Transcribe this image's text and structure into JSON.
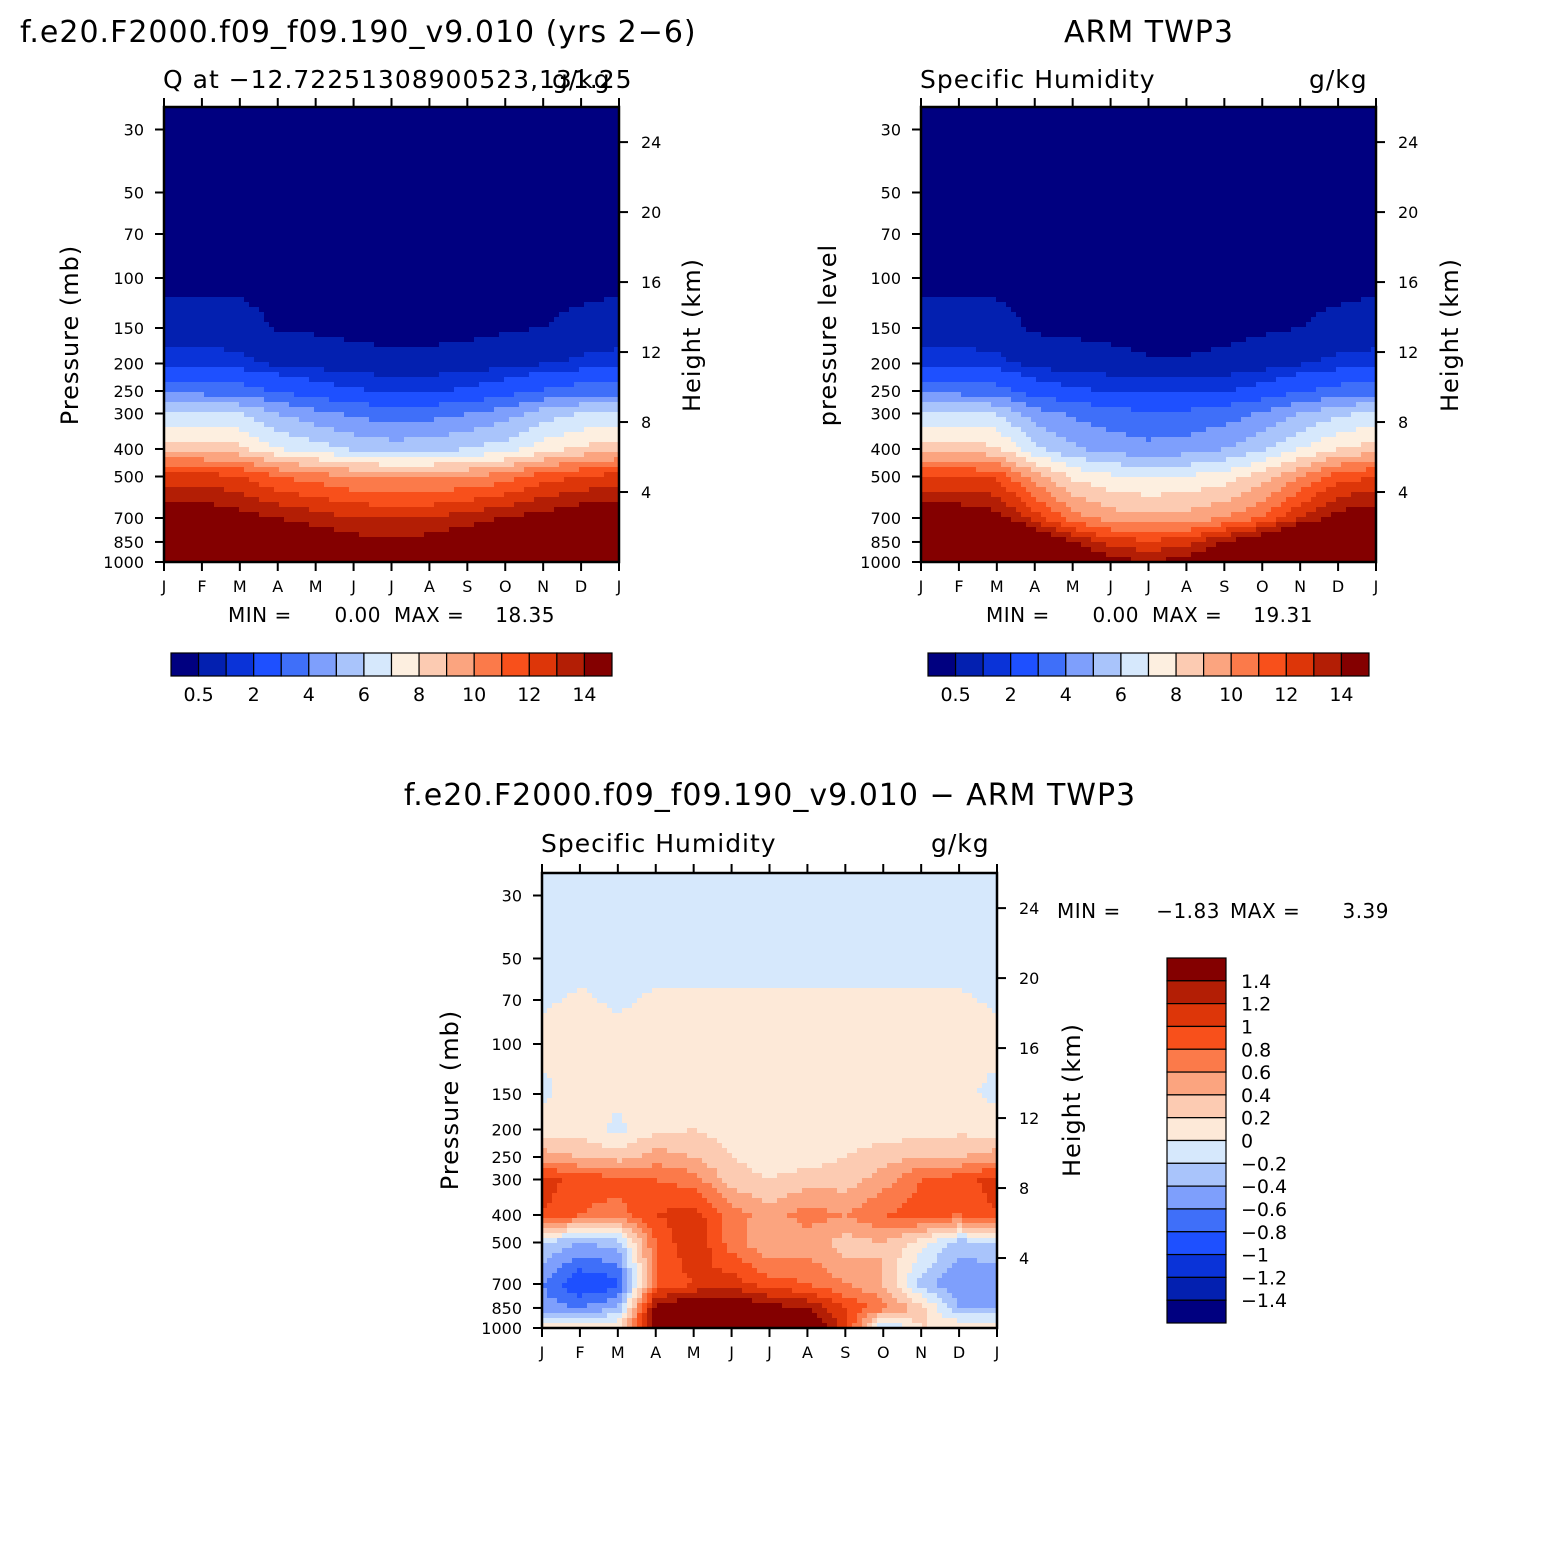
{
  "colors": {
    "abs_scale": [
      "#000080",
      "#0320b0",
      "#0a33d8",
      "#1e50ff",
      "#3f6ff9",
      "#7e9ffc",
      "#a9c4fb",
      "#d6e8fc",
      "#fdefe0",
      "#fccbb2",
      "#fba47f",
      "#fb7a4a",
      "#f8501b",
      "#dd3609",
      "#b31e05",
      "#840000"
    ],
    "diff_scale": [
      "#000080",
      "#0320b0",
      "#0a33d8",
      "#1e50ff",
      "#3f6ff9",
      "#7e9ffc",
      "#a9c4fb",
      "#d6e8fc",
      "#fde9d8",
      "#fccbb2",
      "#fba47f",
      "#fb7a4a",
      "#f8501b",
      "#dd3609",
      "#b31e05",
      "#840000"
    ]
  },
  "chart_data": [
    {
      "type": "heatmap",
      "title": "f.e20.F2000.f09_f09.190_v9.010 (yrs 2−6)",
      "subtitle_left": "Q at −12.72251308900523,131.25",
      "subtitle_right": "g/kg",
      "ylabel": "Pressure (mb)",
      "ylabel_right": "Height (km)",
      "x_ticks": [
        "J",
        "F",
        "M",
        "A",
        "M",
        "J",
        "J",
        "A",
        "S",
        "O",
        "N",
        "D",
        "J"
      ],
      "y_ticks_left": [
        "30",
        "50",
        "70",
        "100",
        "150",
        "200",
        "250",
        "300",
        "400",
        "500",
        "700",
        "850",
        "1000"
      ],
      "y_ticks_right": [
        "24",
        "20",
        "16",
        "12",
        "8",
        "4"
      ],
      "y_scale": "log pressure",
      "ylim": [
        1000,
        25
      ],
      "stats": {
        "min_label": "MIN =",
        "min": "0.00",
        "max_label": "MAX =",
        "max": "18.35"
      },
      "colorbar_labels": [
        "0.5",
        "2",
        "4",
        "6",
        "8",
        "10",
        "12",
        "14"
      ],
      "colorbar_orientation": "horizontal",
      "levels": [
        0.1,
        0.5,
        1,
        2,
        3,
        4,
        5,
        6,
        7,
        8,
        9,
        10,
        11,
        12,
        13,
        14
      ],
      "fields": [
        {
          "z": [
            [
              18,
              17.5,
              17,
              16.5,
              16,
              15,
              15,
              15.2,
              16,
              17,
              18,
              18,
              18
            ],
            [
              16,
              15.5,
              15,
              14.5,
              14,
              13.5,
              13.2,
              13.5,
              14,
              15,
              16,
              16,
              16
            ],
            [
              14,
              14,
              13.5,
              13,
              12.5,
              12,
              12,
              12,
              12.5,
              13,
              13.5,
              14,
              14
            ],
            [
              11.5,
              11.5,
              11,
              10,
              9.5,
              9,
              8.8,
              8.8,
              9,
              9.5,
              10.5,
              11,
              11.5
            ],
            [
              7.5,
              7.5,
              7.3,
              6,
              5.5,
              4.8,
              4.5,
              4.6,
              5,
              5.5,
              6.5,
              7.2,
              7.5
            ],
            [
              5.2,
              5.2,
              5,
              4,
              3.3,
              2.8,
              2.5,
              2.6,
              3,
              3.5,
              4.5,
              5,
              5.2
            ],
            [
              2.6,
              2.6,
              2.5,
              1.9,
              1.4,
              1.1,
              0.9,
              0.95,
              1.1,
              1.5,
              2.1,
              2.5,
              2.6
            ],
            [
              0.7,
              0.75,
              0.65,
              0.38,
              0.28,
              0.2,
              0.16,
              0.17,
              0.2,
              0.3,
              0.45,
              0.6,
              0.7
            ],
            [
              0.22,
              0.23,
              0.2,
              0.08,
              0.06,
              0.04,
              0.03,
              0.03,
              0.04,
              0.06,
              0.1,
              0.17,
              0.22
            ],
            [
              0.03,
              0.03,
              0.03,
              0.01,
              0.01,
              0.01,
              0.01,
              0.01,
              0.01,
              0.01,
              0.01,
              0.02,
              0.03
            ],
            [
              0.01,
              0.01,
              0.01,
              0.01,
              0.01,
              0.01,
              0.01,
              0.01,
              0.01,
              0.01,
              0.01,
              0.01,
              0.01
            ],
            [
              0.005,
              0.005,
              0.005,
              0.005,
              0.005,
              0.005,
              0.005,
              0.005,
              0.005,
              0.005,
              0.005,
              0.005,
              0.005
            ],
            [
              0.004,
              0.004,
              0.004,
              0.004,
              0.004,
              0.004,
              0.004,
              0.004,
              0.004,
              0.004,
              0.004,
              0.004,
              0.004
            ]
          ]
        }
      ]
    },
    {
      "type": "heatmap",
      "title": "ARM TWP3",
      "subtitle_left": "Specific Humidity",
      "subtitle_right": "g/kg",
      "ylabel": "pressure level",
      "ylabel_right": "Height (km)",
      "x_ticks": [
        "J",
        "F",
        "M",
        "A",
        "M",
        "J",
        "J",
        "A",
        "S",
        "O",
        "N",
        "D",
        "J"
      ],
      "y_ticks_left": [
        "30",
        "50",
        "70",
        "100",
        "150",
        "200",
        "250",
        "300",
        "400",
        "500",
        "700",
        "850",
        "1000"
      ],
      "y_ticks_right": [
        "24",
        "20",
        "16",
        "12",
        "8",
        "4"
      ],
      "y_scale": "log pressure",
      "ylim": [
        1000,
        25
      ],
      "stats": {
        "min_label": "MIN =",
        "min": "0.00",
        "max_label": "MAX =",
        "max": "19.31"
      },
      "colorbar_labels": [
        "0.5",
        "2",
        "4",
        "6",
        "8",
        "10",
        "12",
        "14"
      ],
      "colorbar_orientation": "horizontal",
      "levels": [
        0.1,
        0.5,
        1,
        2,
        3,
        4,
        5,
        6,
        7,
        8,
        9,
        10,
        11,
        12,
        13,
        14
      ],
      "fields": [
        {
          "z": [
            [
              19,
              19,
              18.5,
              17,
              15,
              13.5,
              13,
              13.5,
              15,
              16.5,
              18,
              18.5,
              19
            ],
            [
              17,
              17,
              16.5,
              15,
              13,
              11.5,
              11.2,
              11.5,
              13,
              14.5,
              16,
              16.5,
              17
            ],
            [
              14,
              14,
              13.5,
              11.5,
              9.5,
              8.5,
              8.2,
              8.4,
              9,
              10,
              12,
              13.5,
              14
            ],
            [
              11,
              11,
              10.8,
              8.5,
              6.8,
              6.2,
              6,
              6.1,
              6.5,
              7.5,
              9,
              10.5,
              11
            ],
            [
              7.5,
              7.5,
              7.2,
              5.2,
              4.2,
              3.6,
              3.3,
              3.5,
              4,
              4.8,
              6,
              7,
              7.5
            ],
            [
              5.2,
              5.2,
              5,
              3.5,
              2.8,
              2.4,
              2.1,
              2.2,
              2.5,
              3.1,
              4,
              4.8,
              5.2
            ],
            [
              2.6,
              2.6,
              2.4,
              1.5,
              1.15,
              0.95,
              0.8,
              0.85,
              0.95,
              1.3,
              1.9,
              2.4,
              2.6
            ],
            [
              0.7,
              0.72,
              0.65,
              0.3,
              0.22,
              0.17,
              0.12,
              0.12,
              0.16,
              0.26,
              0.45,
              0.62,
              0.7
            ],
            [
              0.22,
              0.22,
              0.2,
              0.06,
              0.05,
              0.04,
              0.03,
              0.03,
              0.03,
              0.05,
              0.1,
              0.17,
              0.22
            ],
            [
              0.03,
              0.03,
              0.03,
              0.01,
              0.01,
              0.01,
              0.01,
              0.01,
              0.01,
              0.01,
              0.01,
              0.02,
              0.03
            ],
            [
              0.01,
              0.01,
              0.01,
              0.01,
              0.01,
              0.01,
              0.01,
              0.01,
              0.01,
              0.01,
              0.01,
              0.01,
              0.01
            ],
            [
              0.005,
              0.005,
              0.005,
              0.005,
              0.005,
              0.005,
              0.005,
              0.005,
              0.005,
              0.005,
              0.005,
              0.005,
              0.005
            ],
            [
              0.004,
              0.004,
              0.004,
              0.004,
              0.004,
              0.004,
              0.004,
              0.004,
              0.004,
              0.004,
              0.004,
              0.004,
              0.004
            ]
          ]
        }
      ]
    },
    {
      "type": "heatmap",
      "title": "f.e20.F2000.f09_f09.190_v9.010 − ARM TWP3",
      "subtitle_left": "Specific Humidity",
      "subtitle_right": "g/kg",
      "ylabel": "Pressure (mb)",
      "ylabel_right": "Height (km)",
      "x_ticks": [
        "J",
        "F",
        "M",
        "A",
        "M",
        "J",
        "J",
        "A",
        "S",
        "O",
        "N",
        "D",
        "J"
      ],
      "y_ticks_left": [
        "30",
        "50",
        "70",
        "100",
        "150",
        "200",
        "250",
        "300",
        "400",
        "500",
        "700",
        "850",
        "1000"
      ],
      "y_ticks_right": [
        "24",
        "20",
        "16",
        "12",
        "8",
        "4"
      ],
      "y_scale": "log pressure",
      "ylim": [
        1000,
        25
      ],
      "stats": {
        "min_label": "MIN =",
        "min": "−1.83",
        "max_label": "MAX =",
        "max": "3.39"
      },
      "colorbar_labels": [
        "1.4",
        "1.2",
        "1",
        "0.8",
        "0.6",
        "0.4",
        "0.2",
        "0",
        "−0.2",
        "−0.4",
        "−0.6",
        "−0.8",
        "−1",
        "−1.2",
        "−1.4"
      ],
      "colorbar_orientation": "vertical",
      "levels": [
        -1.4,
        -1.2,
        -1,
        -0.8,
        -0.6,
        -0.4,
        -0.2,
        0,
        0.2,
        0.4,
        0.6,
        0.8,
        1,
        1.2,
        1.4
      ],
      "fields": [
        {
          "z": [
            [
              0.3,
              0.3,
              0.2,
              1.6,
              1.9,
              1.9,
              1.8,
              1.7,
              1.1,
              -0.3,
              0.2,
              0.2,
              0.3
            ],
            [
              -0.5,
              -0.6,
              -0.4,
              1.5,
              1.7,
              1.7,
              1.5,
              1.4,
              1.0,
              0.7,
              0.3,
              -0.4,
              -0.5
            ],
            [
              -0.6,
              -1.0,
              -0.9,
              0.8,
              1.0,
              1.1,
              0.9,
              0.8,
              0.6,
              0.4,
              -0.3,
              -0.6,
              -0.6
            ],
            [
              -0.2,
              -0.4,
              -0.3,
              0.8,
              1.2,
              0.7,
              0.4,
              0.5,
              0.3,
              0.4,
              0.1,
              -0.3,
              -0.2
            ],
            [
              1.0,
              0.8,
              0.7,
              1.0,
              1.1,
              0.7,
              0.5,
              0.7,
              0.6,
              0.8,
              0.9,
              0.8,
              1.0
            ],
            [
              1.1,
              0.9,
              0.9,
              0.8,
              0.7,
              0.3,
              0.2,
              0.3,
              0.3,
              0.5,
              0.8,
              0.9,
              1.1
            ],
            [
              0.5,
              0.4,
              0.3,
              0.5,
              0.4,
              0.2,
              0.1,
              0.1,
              0.2,
              0.3,
              0.4,
              0.4,
              0.5
            ],
            [
              0.1,
              0.1,
              -0.05,
              0.15,
              0.2,
              0.1,
              0.05,
              0.05,
              0.1,
              0.1,
              0.1,
              0.15,
              0.1
            ],
            [
              -0.05,
              0.1,
              0.05,
              0.1,
              0.1,
              0.05,
              0.05,
              0.05,
              0.05,
              0.05,
              0.05,
              0.05,
              -0.05
            ],
            [
              0.05,
              0.05,
              0.05,
              0.05,
              0.05,
              0.05,
              0.05,
              0.05,
              0.05,
              0.05,
              0.05,
              0.05,
              0.05
            ],
            [
              -0.02,
              0.02,
              -0.02,
              0.02,
              0.02,
              0.02,
              0.02,
              0.02,
              0.02,
              0.02,
              0.02,
              0.02,
              -0.02
            ],
            [
              -0.05,
              -0.05,
              -0.05,
              -0.05,
              -0.05,
              -0.05,
              -0.05,
              -0.05,
              -0.05,
              -0.05,
              -0.05,
              -0.05,
              -0.05
            ],
            [
              -0.05,
              -0.05,
              -0.05,
              -0.05,
              -0.05,
              -0.05,
              -0.05,
              -0.05,
              -0.05,
              -0.05,
              -0.05,
              -0.05,
              -0.05
            ]
          ]
        }
      ]
    }
  ]
}
